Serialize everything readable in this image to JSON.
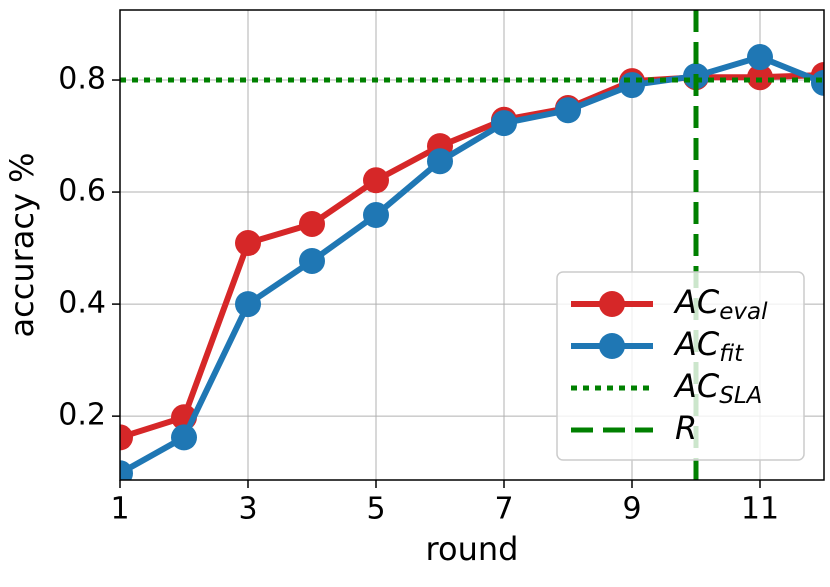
{
  "chart_data": {
    "type": "line",
    "xlabel": "round",
    "ylabel": "accuracy %",
    "x": [
      1,
      2,
      3,
      4,
      5,
      6,
      7,
      8,
      9,
      10,
      11,
      12
    ],
    "series": [
      {
        "name": "AC",
        "name_sub": "eval",
        "color": "#d62728",
        "values": [
          0.162,
          0.198,
          0.509,
          0.543,
          0.621,
          0.682,
          0.729,
          0.75,
          0.798,
          0.805,
          0.805,
          0.809
        ]
      },
      {
        "name": "AC",
        "name_sub": "fit",
        "color": "#1f77b4",
        "values": [
          0.098,
          0.162,
          0.4,
          0.477,
          0.559,
          0.655,
          0.723,
          0.746,
          0.791,
          0.807,
          0.841,
          0.795
        ]
      }
    ],
    "reference_lines": [
      {
        "name": "AC",
        "name_sub": "SLA",
        "axis": "y",
        "value": 0.8,
        "color": "#008000",
        "style": "dotted"
      },
      {
        "name": "R",
        "axis": "x",
        "value": 10,
        "color": "#008000",
        "style": "dashed"
      }
    ],
    "xlim": [
      1,
      12
    ],
    "ylim": [
      0.086,
      0.925
    ],
    "xticks": [
      1,
      3,
      5,
      7,
      9,
      11
    ],
    "yticks": [
      0.2,
      0.4,
      0.6,
      0.8
    ],
    "grid": true,
    "legend": "lower right"
  }
}
